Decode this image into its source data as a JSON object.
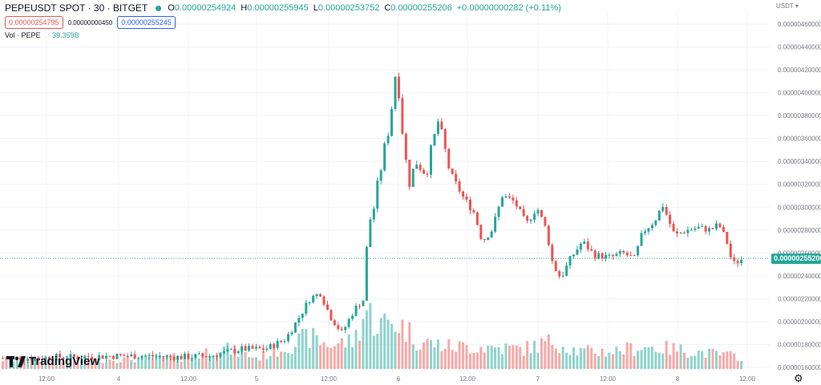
{
  "header": {
    "title": "PEPEUSDT SPOT · 30 · BITGET",
    "o_label": "O",
    "o_value": "0.00000254924",
    "h_label": "H",
    "h_value": "0.00000255945",
    "l_label": "L",
    "l_value": "0.00000253752",
    "c_label": "C",
    "c_value": "0.00000255206",
    "change": "+0.00000000282 (+0.11%)"
  },
  "quotes": {
    "sell": "0.00000254795",
    "spread": "0.00000000450",
    "buy": "0.00000255245"
  },
  "volume": {
    "label": "Vol · PEPE",
    "value": "39.359B"
  },
  "currency": "USDT",
  "brand": "TradingView",
  "colors": {
    "up": "#26a69a",
    "down": "#ef5350",
    "up_vol": "#8fd3cb",
    "down_vol": "#f7a9a7",
    "grid": "#f0f3fa",
    "text": "#131722",
    "axis_text": "#787b86"
  },
  "chart_data": {
    "type": "candlestick",
    "x_tick_labels": [
      "12:00",
      "4",
      "12:00",
      "5",
      "12:00",
      "6",
      "12:00",
      "7",
      "12:00",
      "8",
      "12:00"
    ],
    "y_tick_labels": [
      "0.00000460000",
      "0.00000440000",
      "0.00000420000",
      "0.00000400000",
      "0.00000380000",
      "0.00000360000",
      "0.00000340000",
      "0.00000320000",
      "0.00000300000",
      "0.00000280000",
      "0.00000260000",
      "0.00000240000",
      "0.00000220000",
      "0.00000200000",
      "0.00000180000",
      "0.00000160000"
    ],
    "ylim": [
      1.6e-06,
      4.6e-06
    ],
    "last_price": "0.00000255206",
    "close_path": [
      [
        0,
        1.68e-06
      ],
      [
        40,
        1.68e-06
      ],
      [
        70,
        1.69e-06
      ],
      [
        100,
        1.69e-06
      ],
      [
        140,
        1.7e-06
      ],
      [
        180,
        1.7e-06
      ],
      [
        220,
        1.69e-06
      ],
      [
        260,
        1.7e-06
      ],
      [
        280,
        1.73e-06
      ],
      [
        300,
        1.76e-06
      ],
      [
        330,
        1.76e-06
      ],
      [
        355,
        1.85e-06
      ],
      [
        370,
        2.02e-06
      ],
      [
        385,
        2.2e-06
      ],
      [
        398,
        2.25e-06
      ],
      [
        410,
        2.05e-06
      ],
      [
        425,
        1.9e-06
      ],
      [
        440,
        2.1e-06
      ],
      [
        452,
        2.2e-06
      ],
      [
        458,
        2.85e-06
      ],
      [
        465,
        3e-06
      ],
      [
        475,
        3.4e-06
      ],
      [
        485,
        3.75e-06
      ],
      [
        493,
        4.25e-06
      ],
      [
        500,
        3.7e-06
      ],
      [
        508,
        3.2e-06
      ],
      [
        518,
        3.4e-06
      ],
      [
        530,
        3.3e-06
      ],
      [
        545,
        3.75e-06
      ],
      [
        560,
        3.3e-06
      ],
      [
        575,
        3.1e-06
      ],
      [
        590,
        2.95e-06
      ],
      [
        600,
        2.7e-06
      ],
      [
        612,
        2.8e-06
      ],
      [
        625,
        3.1e-06
      ],
      [
        640,
        3.05e-06
      ],
      [
        655,
        2.85e-06
      ],
      [
        668,
        3e-06
      ],
      [
        680,
        2.8e-06
      ],
      [
        688,
        2.5e-06
      ],
      [
        698,
        2.38e-06
      ],
      [
        710,
        2.55e-06
      ],
      [
        725,
        2.7e-06
      ],
      [
        740,
        2.58e-06
      ],
      [
        760,
        2.56e-06
      ],
      [
        775,
        2.6e-06
      ],
      [
        790,
        2.55e-06
      ],
      [
        800,
        2.78e-06
      ],
      [
        815,
        2.88e-06
      ],
      [
        825,
        3.02e-06
      ],
      [
        840,
        2.75e-06
      ],
      [
        855,
        2.8e-06
      ],
      [
        870,
        2.82e-06
      ],
      [
        885,
        2.8e-06
      ],
      [
        895,
        2.85e-06
      ],
      [
        905,
        2.7e-06
      ],
      [
        912,
        2.5e-06
      ],
      [
        925,
        2.55e-06
      ]
    ],
    "volume_profile": [
      [
        0,
        0.12
      ],
      [
        140,
        0.12
      ],
      [
        240,
        0.15
      ],
      [
        270,
        0.28
      ],
      [
        320,
        0.14
      ],
      [
        360,
        0.3
      ],
      [
        385,
        0.4
      ],
      [
        410,
        0.3
      ],
      [
        440,
        0.35
      ],
      [
        455,
        0.75
      ],
      [
        470,
        0.55
      ],
      [
        490,
        0.6
      ],
      [
        505,
        0.5
      ],
      [
        520,
        0.35
      ],
      [
        560,
        0.28
      ],
      [
        600,
        0.28
      ],
      [
        650,
        0.25
      ],
      [
        690,
        0.35
      ],
      [
        720,
        0.22
      ],
      [
        760,
        0.22
      ],
      [
        800,
        0.28
      ],
      [
        840,
        0.25
      ],
      [
        880,
        0.2
      ],
      [
        925,
        0.15
      ]
    ]
  }
}
